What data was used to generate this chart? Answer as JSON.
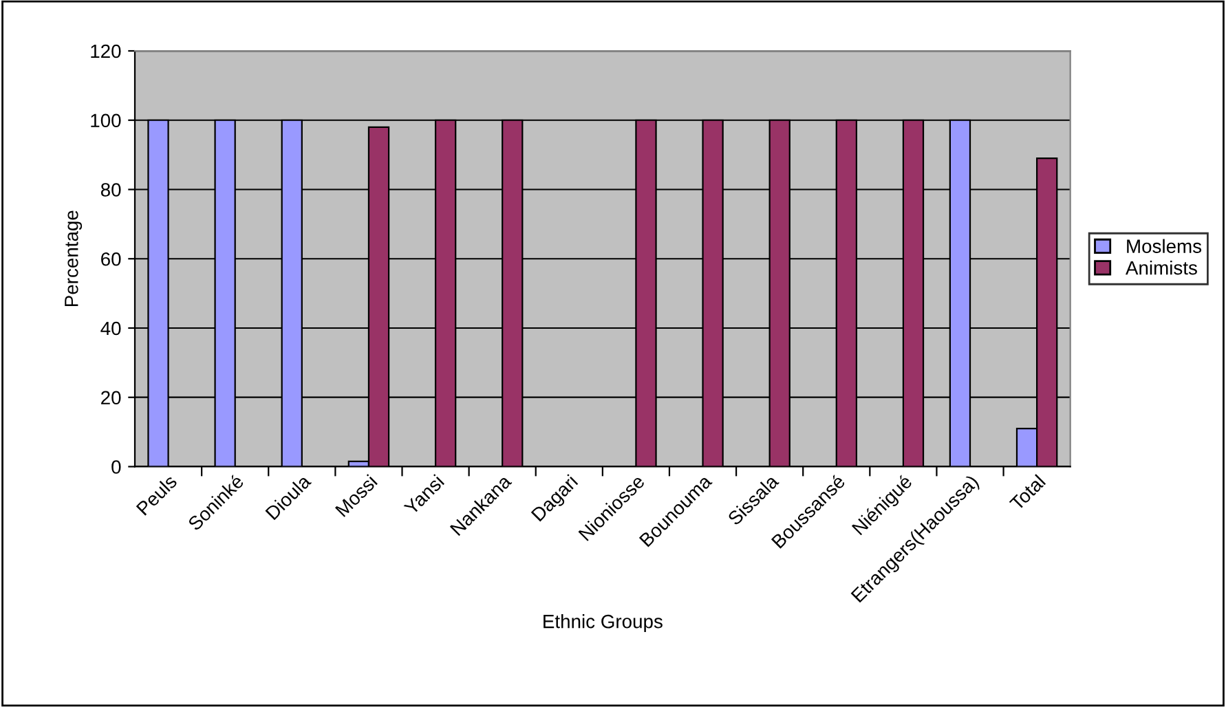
{
  "chart_data": {
    "type": "bar",
    "xlabel": "Ethnic Groups",
    "ylabel": "Percentage",
    "categories": [
      "Peuls",
      "Soninké",
      "Dioula",
      "Mossi",
      "Yansi",
      "Nankana",
      "Dagari",
      "Nioniosse",
      "Bounouma",
      "Sissala",
      "Boussansé",
      "Niénigué",
      "Etrangers(Haoussa)",
      "Total"
    ],
    "series": [
      {
        "name": "Moslems",
        "color": "#9999ff",
        "values": [
          100,
          100,
          100,
          1.5,
          null,
          null,
          null,
          null,
          null,
          null,
          null,
          null,
          100,
          11
        ]
      },
      {
        "name": "Animists",
        "color": "#993366",
        "values": [
          null,
          null,
          null,
          98,
          100,
          100,
          null,
          100,
          100,
          100,
          100,
          100,
          null,
          89
        ]
      }
    ],
    "ylim": [
      0,
      120
    ],
    "yticks": [
      0,
      20,
      40,
      60,
      80,
      100,
      120
    ],
    "grid": "y",
    "legend": "right"
  }
}
